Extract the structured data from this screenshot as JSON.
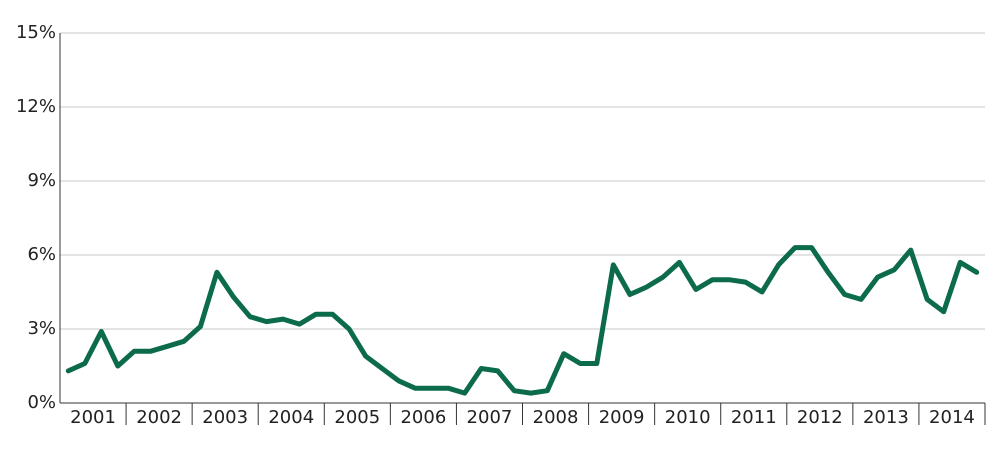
{
  "chart_data": {
    "type": "line",
    "categories": [
      "2001",
      null,
      null,
      null,
      "2002",
      null,
      null,
      null,
      "2003",
      null,
      null,
      null,
      "2004",
      null,
      null,
      null,
      "2005",
      null,
      null,
      null,
      "2006",
      null,
      null,
      null,
      "2007",
      null,
      null,
      null,
      "2008",
      null,
      null,
      null,
      "2009",
      null,
      null,
      null,
      "2010",
      null,
      null,
      null,
      "2011",
      null,
      null,
      null,
      "2012",
      null,
      null,
      null,
      "2013",
      null,
      null,
      null,
      "2014",
      null,
      null,
      null
    ],
    "series": [
      {
        "color": "#0b6b4a",
        "values": [
          1.3,
          1.6,
          2.9,
          1.5,
          2.1,
          2.1,
          2.3,
          2.5,
          3.1,
          5.3,
          4.3,
          3.5,
          3.3,
          3.4,
          3.2,
          3.6,
          3.6,
          3.0,
          1.9,
          1.4,
          0.9,
          0.6,
          0.6,
          0.6,
          0.4,
          1.4,
          1.3,
          0.5,
          0.4,
          0.5,
          2.0,
          1.6,
          1.6,
          5.6,
          4.4,
          4.7,
          5.1,
          5.7,
          4.6,
          5.0,
          5.0,
          4.9,
          4.5,
          5.6,
          6.3,
          6.3,
          5.3,
          4.4,
          4.2,
          5.1,
          5.4,
          6.2,
          4.2,
          3.7,
          5.7,
          5.3
        ]
      }
    ],
    "ylim": [
      0,
      15
    ],
    "yticks": [
      {
        "value": 0,
        "label": "0%"
      },
      {
        "value": 3,
        "label": "3%"
      },
      {
        "value": 6,
        "label": "6%"
      },
      {
        "value": 9,
        "label": "9%"
      },
      {
        "value": 12,
        "label": "12%"
      },
      {
        "value": 15,
        "label": "15%"
      }
    ],
    "grid": true
  }
}
